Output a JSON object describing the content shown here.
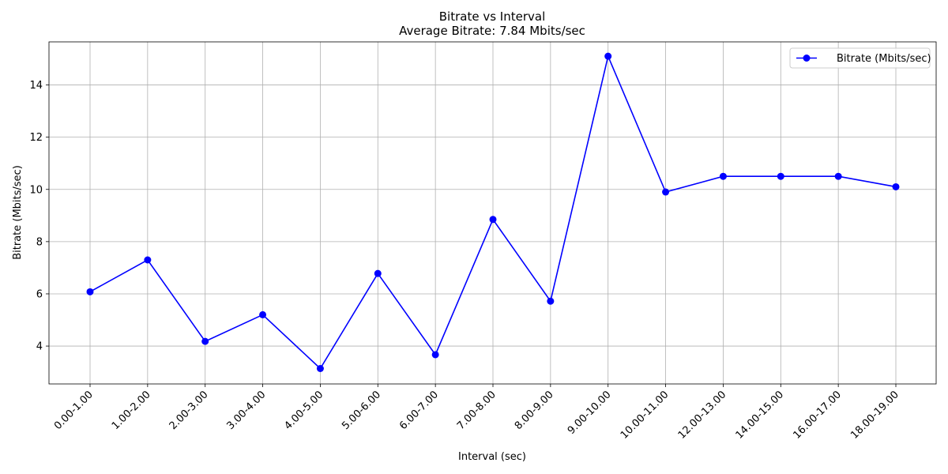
{
  "chart_data": {
    "type": "line",
    "title": "Bitrate vs Interval",
    "subtitle": "Average Bitrate: 7.84 Mbits/sec",
    "xlabel": "Interval (sec)",
    "ylabel": "Bitrate (Mbits/sec)",
    "categories": [
      "0.00-1.00",
      "1.00-2.00",
      "2.00-3.00",
      "3.00-4.00",
      "4.00-5.00",
      "5.00-6.00",
      "6.00-7.00",
      "7.00-8.00",
      "8.00-9.00",
      "9.00-10.00",
      "10.00-11.00",
      "12.00-13.00",
      "14.00-15.00",
      "16.00-17.00",
      "18.00-19.00"
    ],
    "series": [
      {
        "name": "Bitrate (Mbits/sec)",
        "values": [
          6.08,
          7.3,
          4.18,
          5.2,
          3.14,
          6.78,
          3.67,
          8.85,
          5.72,
          15.1,
          9.9,
          10.5,
          10.5,
          10.5,
          10.1
        ],
        "color": "#0000ff",
        "marker": "circle"
      }
    ],
    "ylim": [
      2.55,
      15.65
    ],
    "yticks": [
      4,
      6,
      8,
      10,
      12,
      14
    ],
    "grid": true,
    "legend_position": "top-right"
  }
}
